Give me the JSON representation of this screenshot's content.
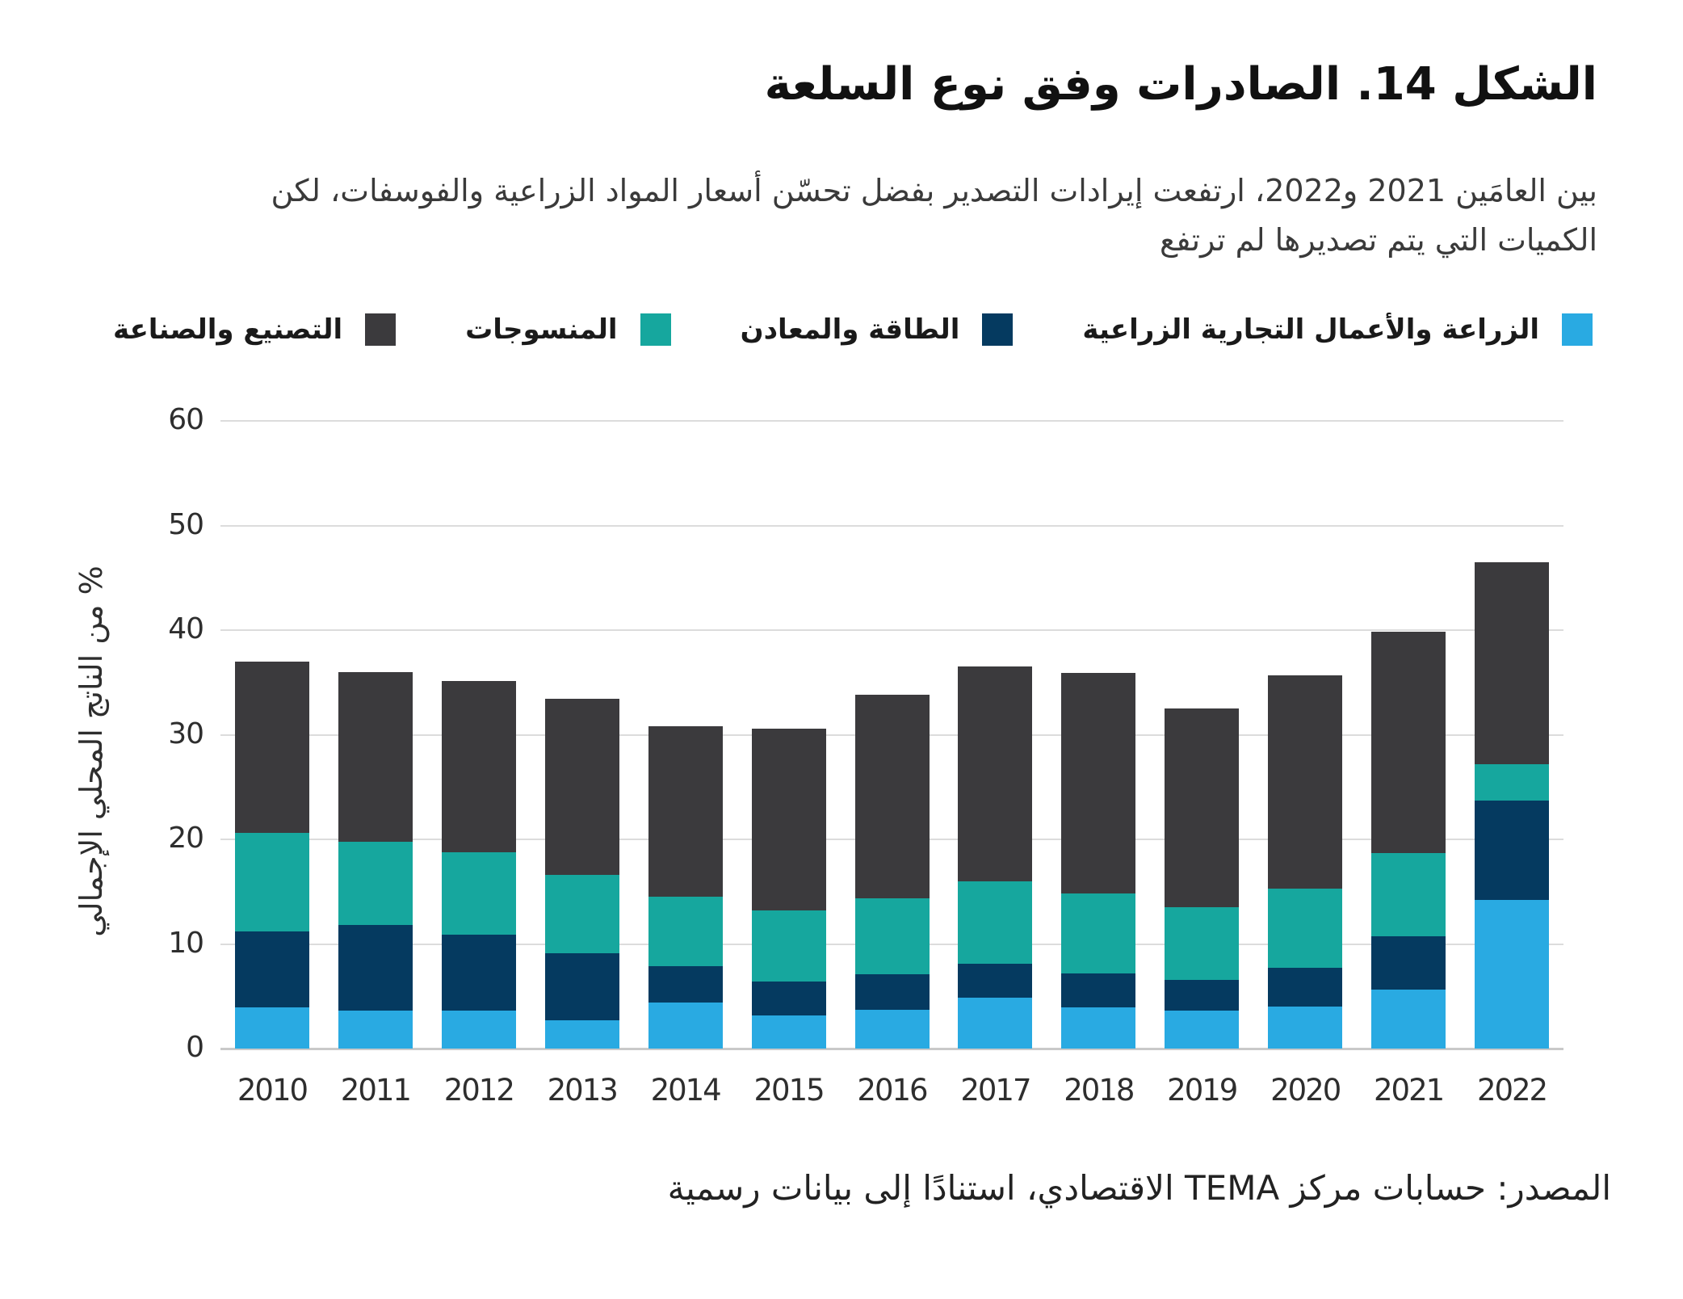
{
  "title": "الشكل 14. الصادرات وفق نوع السلعة",
  "subtitle": {
    "line1": "بين العامَين 2021 و2022، ارتفعت إيرادات التصدير بفضل تحسّن أسعار المواد الزراعية والفوسفات، لكن",
    "line2": "الكميات التي يتم تصديرها لم ترتفع"
  },
  "legend": [
    {
      "label": "الزراعة والأعمال التجارية الزراعية",
      "color": "#29AAE2",
      "key": "agriculture"
    },
    {
      "label": "الطاقة والمعادن",
      "color": "#053A60",
      "key": "energy-minerals"
    },
    {
      "label": "المنسوجات",
      "color": "#16A79E",
      "key": "textiles"
    },
    {
      "label": "التصنيع والصناعة",
      "color": "#3B3A3D",
      "key": "manufacturing"
    }
  ],
  "chart_data": {
    "type": "bar",
    "stacked": true,
    "categories": [
      "2010",
      "2011",
      "2012",
      "2013",
      "2014",
      "2015",
      "2016",
      "2017",
      "2018",
      "2019",
      "2020",
      "2021",
      "2022"
    ],
    "series": [
      {
        "name": "الزراعة والأعمال التجارية الزراعية",
        "key": "agriculture",
        "color": "#29AAE2",
        "values": [
          3.9,
          3.6,
          3.6,
          2.7,
          4.4,
          3.2,
          3.7,
          4.9,
          3.9,
          3.6,
          4.0,
          5.6,
          14.2
        ]
      },
      {
        "name": "الطاقة والمعادن",
        "key": "energy-minerals",
        "color": "#053A60",
        "values": [
          7.3,
          8.2,
          7.3,
          6.4,
          3.5,
          3.2,
          3.4,
          3.2,
          3.3,
          3.0,
          3.75,
          5.15,
          9.5
        ]
      },
      {
        "name": "المنسوجات",
        "key": "textiles",
        "color": "#16A79E",
        "values": [
          9.4,
          8.0,
          7.9,
          7.5,
          6.6,
          6.8,
          7.3,
          7.9,
          7.6,
          6.9,
          7.55,
          7.95,
          3.5
        ]
      },
      {
        "name": "التصنيع والصناعة",
        "key": "manufacturing",
        "color": "#3B3A3D",
        "values": [
          16.4,
          16.2,
          16.3,
          16.8,
          16.3,
          17.4,
          19.4,
          20.5,
          21.1,
          19.0,
          20.4,
          21.15,
          19.3
        ]
      }
    ],
    "ylabel": "% من الناتج المحلي الإجمالي",
    "yticks": [
      0,
      10,
      20,
      30,
      40,
      50,
      60
    ],
    "ylim": [
      0,
      60
    ],
    "grid": true,
    "legend_position": "top"
  },
  "source": "المصدر: حسابات مركز TEMA الاقتصادي، استنادًا إلى بيانات رسمية"
}
